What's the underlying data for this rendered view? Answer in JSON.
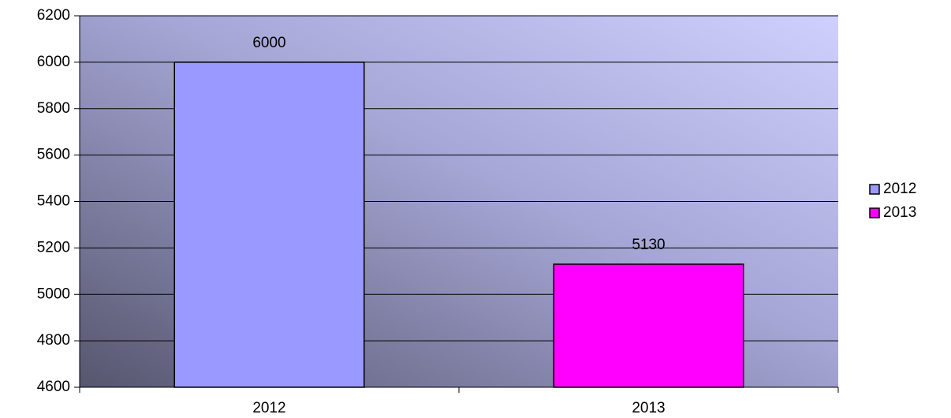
{
  "chart_data": {
    "type": "bar",
    "categories": [
      "2012",
      "2013"
    ],
    "values": [
      6000,
      5130
    ],
    "colors": [
      "#9999ff",
      "#ff00ff"
    ],
    "ylim": [
      4600,
      6200
    ],
    "yticks": [
      4600,
      4800,
      5000,
      5200,
      5400,
      5600,
      5800,
      6000,
      6200
    ],
    "grid": true,
    "legend": "right"
  }
}
